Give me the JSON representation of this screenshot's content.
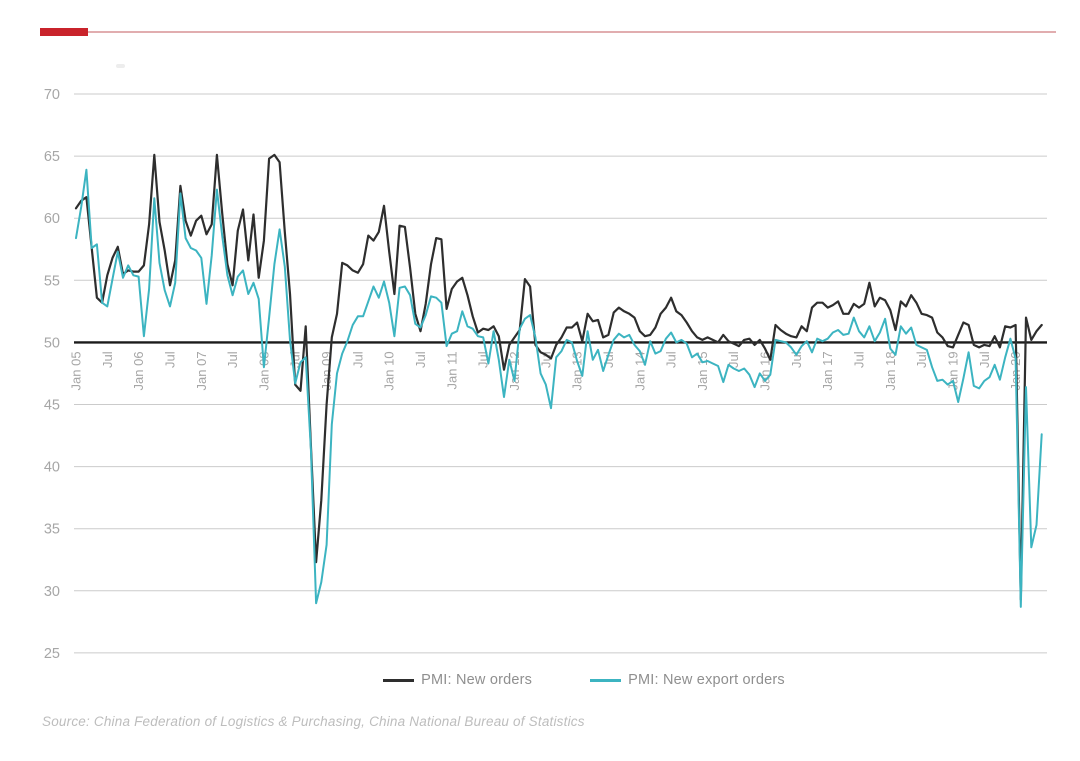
{
  "page": {
    "accent_bar_color": "#c9232b",
    "accent_line_color": "#c96a6e",
    "background": "#ffffff"
  },
  "source_note": "Source: China Federation of Logistics & Purchasing, China National Bureau of Statistics",
  "legend": {
    "position": "bottom-center",
    "items": [
      "PMI: New orders",
      "PMI: New export orders"
    ]
  },
  "chart_data": {
    "type": "line",
    "title": "",
    "x_start": "2005-01",
    "x_end": "2020-06",
    "x_unit": "month",
    "n_points": 186,
    "x_tick_labels": [
      "Jan 05",
      "Jul",
      "Jan 06",
      "Jul",
      "Jan 07",
      "Jul",
      "Jan 08",
      "Jul",
      "Jan 09",
      "Jul",
      "Jan 10",
      "Jul",
      "Jan 11",
      "Jul",
      "Jan 12",
      "Jul",
      "Jan 13",
      "Jul",
      "Jan 14",
      "Jul",
      "Jan 15",
      "Jul",
      "Jan 16",
      "Jul",
      "Jan 17",
      "Jul",
      "Jan 18",
      "Jul",
      "Jan 19",
      "Jul",
      "Jan 20"
    ],
    "x_tick_step_months": 6,
    "x_tick_rotation": -90,
    "y_ticks": [
      25,
      30,
      35,
      40,
      45,
      50,
      55,
      60,
      65,
      70
    ],
    "ylim": [
      25,
      70
    ],
    "baseline_value": 50,
    "grid": "horizontal",
    "grid_color": "#cbcbcb",
    "baseline_color": "#1b1b1b",
    "tick_label_color": "#a6a6a6",
    "legend_position": "bottom-center",
    "series": [
      {
        "name": "PMI: New orders",
        "color": "#2e2e2e",
        "values": [
          60.8,
          61.4,
          61.7,
          57.6,
          53.6,
          53.2,
          55.4,
          56.8,
          57.7,
          55.5,
          55.8,
          55.7,
          55.7,
          56.2,
          59.5,
          65.1,
          59.7,
          57.4,
          54.6,
          56.6,
          62.6,
          59.8,
          58.6,
          59.8,
          60.2,
          58.7,
          59.5,
          65.1,
          60.4,
          56.3,
          54.6,
          59.0,
          60.7,
          56.6,
          60.3,
          55.2,
          58.2,
          64.8,
          65.1,
          64.5,
          58.9,
          53.9,
          46.6,
          46.1,
          51.3,
          41.7,
          32.3,
          37.3,
          45.0,
          50.4,
          52.3,
          56.4,
          56.2,
          55.8,
          55.6,
          56.3,
          58.6,
          58.2,
          58.9,
          61.0,
          57.3,
          53.9,
          59.4,
          59.3,
          56.0,
          52.3,
          50.9,
          53.1,
          56.3,
          58.4,
          58.3,
          52.7,
          54.3,
          54.9,
          55.2,
          53.8,
          52.1,
          50.8,
          51.1,
          51.0,
          51.3,
          50.5,
          47.8,
          49.8,
          50.4,
          51.0,
          55.1,
          54.5,
          49.8,
          49.2,
          49.0,
          48.7,
          49.8,
          50.4,
          51.2,
          51.2,
          51.6,
          50.1,
          52.3,
          51.7,
          51.8,
          50.4,
          50.6,
          52.4,
          52.8,
          52.5,
          52.3,
          52.0,
          50.9,
          50.5,
          50.6,
          51.2,
          52.3,
          52.8,
          53.6,
          52.5,
          52.2,
          51.6,
          50.9,
          50.4,
          50.2,
          50.4,
          50.2,
          50.0,
          50.6,
          50.1,
          49.9,
          49.7,
          50.2,
          50.3,
          49.8,
          50.2,
          49.5,
          48.6,
          51.4,
          51.0,
          50.7,
          50.5,
          50.4,
          51.3,
          50.9,
          52.8,
          53.2,
          53.2,
          52.8,
          53.0,
          53.3,
          52.3,
          52.3,
          53.1,
          52.8,
          53.1,
          54.8,
          52.9,
          53.6,
          53.4,
          52.6,
          51.0,
          53.3,
          52.9,
          53.8,
          53.2,
          52.3,
          52.2,
          52.0,
          50.8,
          50.4,
          49.7,
          49.6,
          50.6,
          51.6,
          51.4,
          49.8,
          49.6,
          49.8,
          49.7,
          50.5,
          49.6,
          51.3,
          51.2,
          51.4,
          29.3,
          52.0,
          50.2,
          50.9,
          51.4
        ]
      },
      {
        "name": "PMI: New export orders",
        "color": "#3cb4c1",
        "values": [
          58.4,
          60.9,
          63.9,
          57.6,
          57.9,
          53.2,
          52.9,
          55.1,
          57.3,
          55.2,
          56.2,
          55.4,
          55.3,
          50.5,
          54.3,
          61.6,
          56.4,
          54.2,
          52.9,
          54.8,
          62.0,
          58.4,
          57.6,
          57.4,
          56.8,
          53.1,
          57.0,
          62.3,
          58.6,
          55.4,
          53.8,
          55.3,
          55.8,
          53.9,
          54.8,
          53.5,
          48.0,
          52.0,
          56.3,
          59.1,
          56.1,
          50.2,
          46.7,
          48.4,
          48.8,
          41.4,
          29.0,
          30.7,
          33.7,
          43.4,
          47.5,
          49.1,
          50.1,
          51.4,
          52.1,
          52.1,
          53.3,
          54.5,
          53.6,
          54.9,
          53.2,
          50.5,
          54.4,
          54.5,
          53.8,
          51.5,
          51.2,
          52.2,
          53.7,
          53.6,
          53.2,
          49.7,
          50.7,
          50.9,
          52.5,
          51.3,
          51.1,
          50.5,
          50.4,
          48.3,
          50.9,
          48.6,
          45.6,
          48.6,
          46.9,
          51.1,
          51.9,
          52.2,
          50.4,
          47.5,
          46.6,
          44.7,
          48.8,
          49.3,
          50.2,
          50.0,
          48.5,
          47.3,
          50.9,
          48.6,
          49.4,
          47.7,
          49.0,
          50.2,
          50.7,
          50.4,
          50.6,
          49.8,
          49.3,
          48.2,
          50.1,
          49.1,
          49.3,
          50.3,
          50.8,
          50.0,
          50.2,
          49.9,
          48.8,
          49.1,
          48.4,
          48.5,
          48.3,
          48.1,
          46.8,
          48.2,
          47.9,
          47.7,
          47.9,
          47.4,
          46.4,
          47.5,
          46.9,
          47.4,
          50.2,
          50.1,
          50.0,
          49.6,
          49.0,
          49.7,
          50.1,
          49.2,
          50.3,
          50.1,
          50.3,
          50.8,
          51.0,
          50.6,
          50.7,
          52.0,
          50.9,
          50.4,
          51.3,
          50.1,
          50.8,
          51.9,
          49.5,
          49.0,
          51.3,
          50.7,
          51.2,
          49.8,
          49.6,
          49.4,
          48.0,
          46.9,
          47.0,
          46.6,
          46.9,
          45.2,
          47.1,
          49.2,
          46.5,
          46.3,
          46.9,
          47.2,
          48.2,
          47.0,
          48.8,
          50.3,
          48.7,
          28.7,
          46.4,
          33.5,
          35.3,
          42.6
        ]
      }
    ]
  }
}
